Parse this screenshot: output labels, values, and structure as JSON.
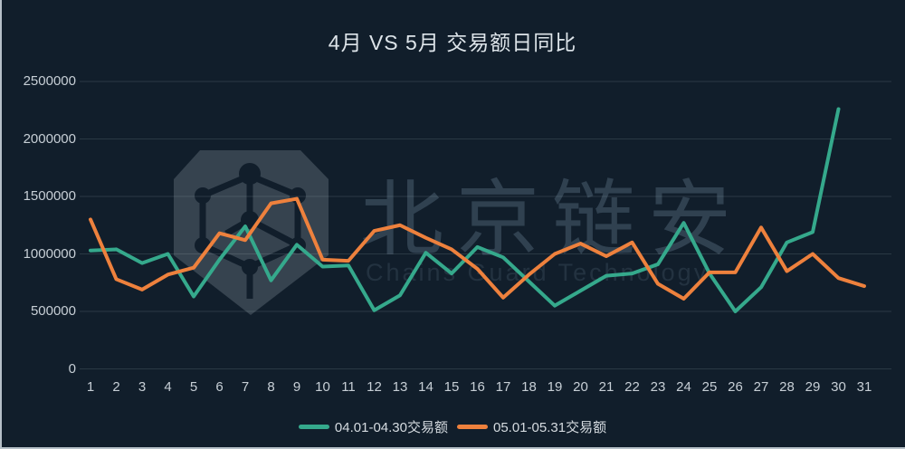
{
  "watermark": {
    "cn": "北京链安",
    "en": "Chains Guard Technology"
  },
  "colors": {
    "april": "#35a98c",
    "may": "#ee813d",
    "background": "#111e2b"
  },
  "legend": {
    "april_label": "04.01-04.30交易额",
    "may_label": "05.01-05.31交易额"
  },
  "chart_data": {
    "type": "line",
    "title": "4月 VS  5月 交易额日同比",
    "xlabel": "",
    "ylabel": "",
    "x": [
      1,
      2,
      3,
      4,
      5,
      6,
      7,
      8,
      9,
      10,
      11,
      12,
      13,
      14,
      15,
      16,
      17,
      18,
      19,
      20,
      21,
      22,
      23,
      24,
      25,
      26,
      27,
      28,
      29,
      30,
      31
    ],
    "ylim": [
      0,
      2500000
    ],
    "yticks": [
      0,
      500000,
      1000000,
      1500000,
      2000000,
      2500000
    ],
    "grid": "horizontal",
    "legend_position": "bottom",
    "series": [
      {
        "name": "04.01-04.30交易额",
        "color_key": "april",
        "values": [
          1030000,
          1040000,
          920000,
          1000000,
          630000,
          950000,
          1240000,
          770000,
          1080000,
          890000,
          900000,
          510000,
          640000,
          1010000,
          830000,
          1060000,
          970000,
          760000,
          550000,
          680000,
          810000,
          830000,
          910000,
          1270000,
          830000,
          500000,
          710000,
          1100000,
          1190000,
          2260000
        ]
      },
      {
        "name": "05.01-05.31交易额",
        "color_key": "may",
        "values": [
          1300000,
          780000,
          690000,
          820000,
          880000,
          1180000,
          1120000,
          1440000,
          1480000,
          950000,
          940000,
          1200000,
          1250000,
          1140000,
          1040000,
          870000,
          620000,
          820000,
          1000000,
          1090000,
          980000,
          1100000,
          740000,
          610000,
          840000,
          840000,
          1230000,
          850000,
          1000000,
          790000,
          720000
        ]
      }
    ]
  }
}
